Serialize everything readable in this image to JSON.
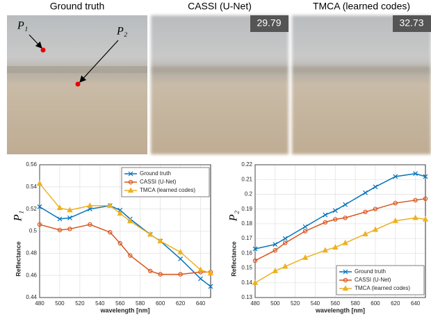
{
  "images": {
    "panels": [
      {
        "title": "Ground truth"
      },
      {
        "title": "CASSI (U-Net)",
        "badge": "29.79"
      },
      {
        "title": "TMCA (learned codes)",
        "badge": "32.73"
      }
    ],
    "points": [
      {
        "label": "P₁"
      },
      {
        "label": "P₂"
      }
    ]
  },
  "chart_data": [
    {
      "type": "line",
      "xlabel": "wavelength [nm]",
      "ylabel": "Reflectance",
      "symbol": "P₁",
      "x": [
        480,
        500,
        510,
        530,
        550,
        560,
        570,
        590,
        600,
        620,
        640,
        650
      ],
      "xlim": [
        480,
        650
      ],
      "xticks": [
        480,
        500,
        520,
        540,
        560,
        580,
        600,
        620,
        640
      ],
      "ylim": [
        0.44,
        0.56
      ],
      "yticks": [
        0.44,
        0.46,
        0.48,
        0.5,
        0.52,
        0.54,
        0.56
      ],
      "grid": true,
      "legend": "upper right",
      "series": [
        {
          "name": "Ground truth",
          "color": "#0072bd",
          "marker": "x",
          "values": [
            0.522,
            0.511,
            0.512,
            0.52,
            0.523,
            0.519,
            0.511,
            0.497,
            0.491,
            0.475,
            0.457,
            0.45
          ]
        },
        {
          "name": "CASSI (U-Net)",
          "color": "#d95319",
          "marker": "o",
          "values": [
            0.506,
            0.501,
            0.502,
            0.506,
            0.499,
            0.489,
            0.478,
            0.464,
            0.461,
            0.461,
            0.463,
            0.463
          ]
        },
        {
          "name": "TMCA (learned codes)",
          "color": "#edb120",
          "marker": "^",
          "values": [
            0.543,
            0.521,
            0.519,
            0.523,
            0.523,
            0.516,
            0.509,
            0.497,
            0.491,
            0.481,
            0.465,
            0.462
          ]
        }
      ]
    },
    {
      "type": "line",
      "xlabel": "wavelength [nm]",
      "ylabel": "Reflectance",
      "symbol": "P₂",
      "x": [
        480,
        500,
        510,
        530,
        550,
        560,
        570,
        590,
        600,
        620,
        640,
        650
      ],
      "xlim": [
        480,
        650
      ],
      "xticks": [
        480,
        500,
        520,
        540,
        560,
        580,
        600,
        620,
        640
      ],
      "ylim": [
        0.13,
        0.22
      ],
      "yticks": [
        0.13,
        0.14,
        0.15,
        0.16,
        0.17,
        0.18,
        0.19,
        0.2,
        0.21,
        0.22
      ],
      "grid": true,
      "legend": "lower right",
      "series": [
        {
          "name": "Ground truth",
          "color": "#0072bd",
          "marker": "x",
          "values": [
            0.163,
            0.166,
            0.17,
            0.178,
            0.186,
            0.189,
            0.193,
            0.201,
            0.205,
            0.212,
            0.214,
            0.212
          ]
        },
        {
          "name": "CASSI (U-Net)",
          "color": "#d95319",
          "marker": "o",
          "values": [
            0.155,
            0.162,
            0.167,
            0.175,
            0.181,
            0.183,
            0.184,
            0.188,
            0.19,
            0.194,
            0.196,
            0.197
          ]
        },
        {
          "name": "TMCA (learned codes)",
          "color": "#edb120",
          "marker": "^",
          "values": [
            0.14,
            0.148,
            0.151,
            0.157,
            0.162,
            0.164,
            0.167,
            0.173,
            0.176,
            0.182,
            0.184,
            0.183
          ]
        }
      ]
    }
  ]
}
